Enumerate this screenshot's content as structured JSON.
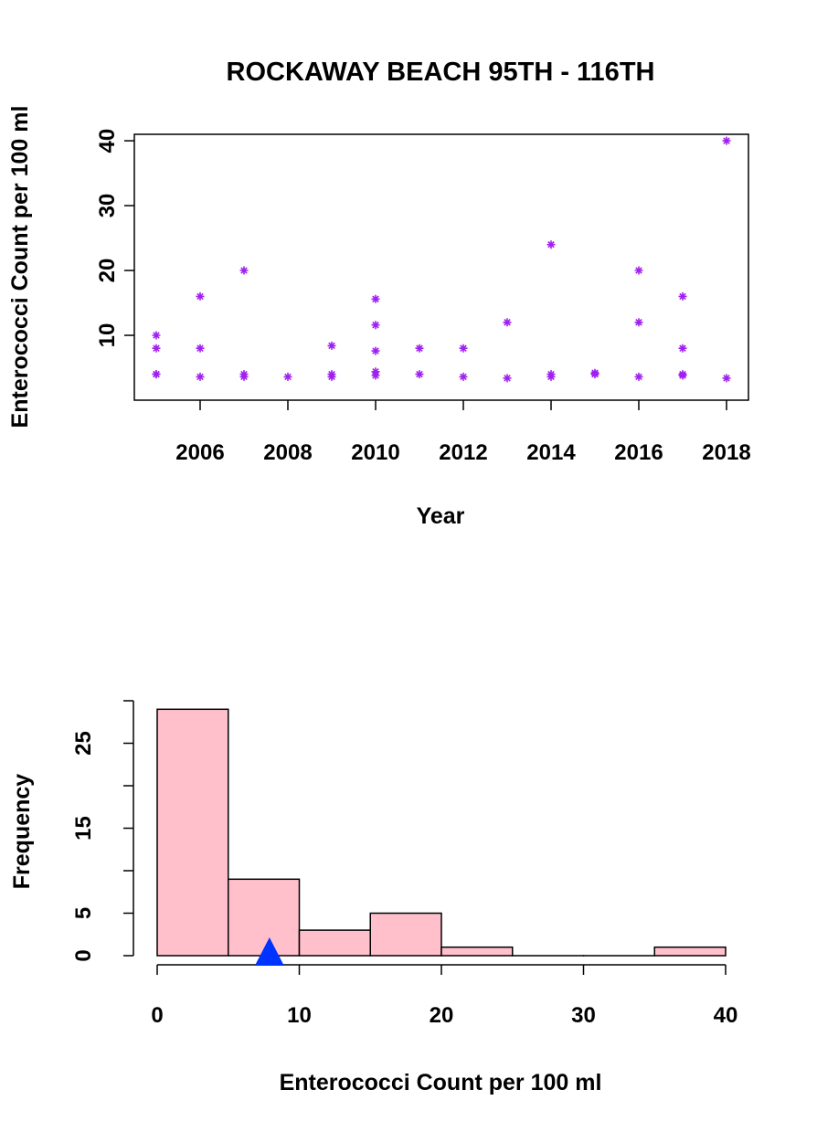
{
  "chart_data": [
    {
      "type": "scatter",
      "title": "ROCKAWAY BEACH 95TH - 116TH",
      "xlabel": "Year",
      "ylabel": "Enterococci Count per 100 ml",
      "xlim": [
        2004.5,
        2018.5
      ],
      "ylim": [
        0,
        41
      ],
      "xticks": [
        2006,
        2008,
        2010,
        2012,
        2014,
        2016,
        2018
      ],
      "yticks": [
        10,
        20,
        30,
        40
      ],
      "marker": "asterisk",
      "marker_color": "#a020f0",
      "points": [
        [
          2005,
          10
        ],
        [
          2005,
          8
        ],
        [
          2005,
          4
        ],
        [
          2005,
          4
        ],
        [
          2006,
          16
        ],
        [
          2006,
          8
        ],
        [
          2006,
          3.6
        ],
        [
          2007,
          20
        ],
        [
          2007,
          4
        ],
        [
          2007,
          3.6
        ],
        [
          2008,
          3.6
        ],
        [
          2009,
          8.4
        ],
        [
          2009,
          4
        ],
        [
          2009,
          3.6
        ],
        [
          2010,
          15.6
        ],
        [
          2010,
          11.6
        ],
        [
          2010,
          7.6
        ],
        [
          2010,
          4.4
        ],
        [
          2010,
          3.8
        ],
        [
          2011,
          8
        ],
        [
          2011,
          4
        ],
        [
          2012,
          8
        ],
        [
          2012,
          3.6
        ],
        [
          2013,
          12
        ],
        [
          2013,
          3.4
        ],
        [
          2014,
          24
        ],
        [
          2014,
          4
        ],
        [
          2014,
          3.6
        ],
        [
          2015,
          4.2
        ],
        [
          2015,
          4
        ],
        [
          2016,
          20
        ],
        [
          2016,
          12
        ],
        [
          2016,
          3.6
        ],
        [
          2017,
          16
        ],
        [
          2017,
          8
        ],
        [
          2017,
          4
        ],
        [
          2017,
          3.8
        ],
        [
          2018,
          40
        ],
        [
          2018,
          3.4
        ]
      ]
    },
    {
      "type": "bar",
      "title": "",
      "xlabel": "Enterococci Count per 100 ml",
      "ylabel": "Frequency",
      "xlim": [
        0,
        40
      ],
      "ylim": [
        0,
        30
      ],
      "xticks": [
        0,
        10,
        20,
        30,
        40
      ],
      "yticks": [
        0,
        5,
        15,
        25
      ],
      "ytick_marks": [
        0,
        5,
        10,
        15,
        20,
        25,
        30
      ],
      "bins": [
        [
          0,
          5
        ],
        [
          5,
          10
        ],
        [
          10,
          15
        ],
        [
          15,
          20
        ],
        [
          20,
          25
        ],
        [
          25,
          30
        ],
        [
          30,
          35
        ],
        [
          35,
          40
        ]
      ],
      "values": [
        29,
        9,
        3,
        5,
        1,
        0,
        0,
        1
      ],
      "bar_color": "#ffc0cb",
      "mean_marker": {
        "value": 7.9,
        "shape": "triangle",
        "color": "#0033ff"
      }
    }
  ]
}
